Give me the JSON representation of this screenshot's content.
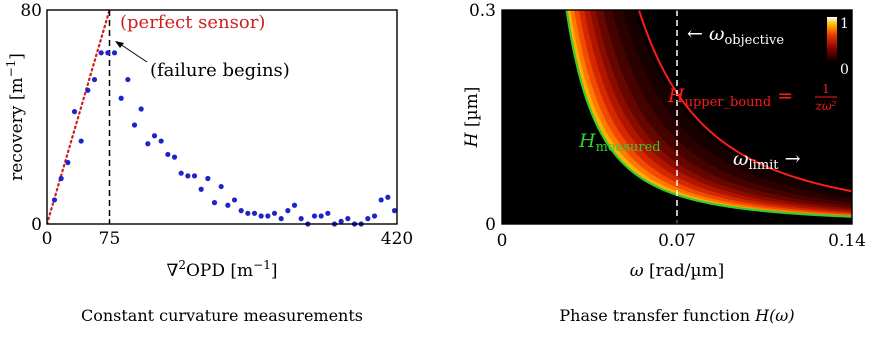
{
  "chart_data": [
    {
      "type": "scatter",
      "caption": "Constant curvature measurements",
      "xlabel_parts": [
        "∇",
        "2",
        "OPD [m",
        "−1",
        "]"
      ],
      "ylabel_parts": [
        "recovery [m",
        "−1",
        "]"
      ],
      "xlim": [
        0,
        420
      ],
      "ylim": [
        0,
        80
      ],
      "xticks": [
        "0",
        "75",
        "420"
      ],
      "yticks": [
        "0",
        "80"
      ],
      "colors": {
        "points": "#1f24c8",
        "ideal": "#cc1f1f",
        "vline": "#000000"
      },
      "series": [
        {
          "x": [
            9,
            17,
            25,
            33,
            41,
            49,
            57,
            65,
            73,
            81,
            89,
            97,
            105,
            113,
            121,
            129,
            137,
            145,
            153,
            161,
            169,
            177,
            185,
            193,
            201,
            209,
            217,
            225,
            233,
            241,
            249,
            257,
            265,
            273,
            281,
            289,
            297,
            305,
            313,
            321,
            329,
            337,
            345,
            353,
            361,
            369,
            377,
            385,
            393,
            401,
            409,
            417
          ],
          "y": [
            9,
            17,
            23,
            42,
            31,
            50,
            54,
            64,
            64,
            64,
            47,
            54,
            37,
            43,
            30,
            33,
            31,
            26,
            25,
            19,
            18,
            18,
            13,
            17,
            8,
            14,
            7,
            9,
            5,
            4,
            4,
            3,
            3,
            4,
            2,
            5,
            7,
            2,
            0,
            3,
            3,
            4,
            0,
            1,
            2,
            0,
            0,
            2,
            3,
            9,
            10,
            5
          ]
        }
      ],
      "ideal_line": {
        "x": [
          0,
          75
        ],
        "y": [
          0,
          80
        ]
      },
      "vline_x": 75,
      "annotations": {
        "perfect": "(perfect sensor)",
        "failure": "(failure begins)"
      },
      "failure_point": {
        "x": 73,
        "y": 64
      }
    },
    {
      "type": "heatmap",
      "caption_text": "Phase transfer function ",
      "caption_math": "H(ω)",
      "xlabel_parts": [
        "ω",
        " [rad/µm]"
      ],
      "ylabel_parts": [
        "H",
        " [µm]"
      ],
      "xlim": [
        0,
        0.14
      ],
      "ylim": [
        0,
        0.3
      ],
      "xticks": [
        "0",
        "0.07",
        "0.14"
      ],
      "yticks": [
        "0",
        "0.3"
      ],
      "colorbar_ticks": [
        "1",
        "0"
      ],
      "colors": {
        "background": "#000000",
        "measured": "#33cc33",
        "upper": "#ff1a1a",
        "dash": "#ffffff"
      },
      "measured_curve": {
        "k": 0.0002
      },
      "upper_bound_curve": {
        "k": 0.0009
      },
      "vline_x": 0.07,
      "labels": {
        "objective": {
          "arrow": "←",
          "sym": "ω",
          "sub": "objective"
        },
        "limit": {
          "sym": "ω",
          "sub": "limit",
          "arrow": "→"
        },
        "measured": {
          "sym": "H",
          "sub": "measured"
        },
        "upper": {
          "sym": "H",
          "sub": "upper_bound",
          "eq": " = ",
          "num": "1",
          "den": "zω²"
        }
      }
    }
  ]
}
